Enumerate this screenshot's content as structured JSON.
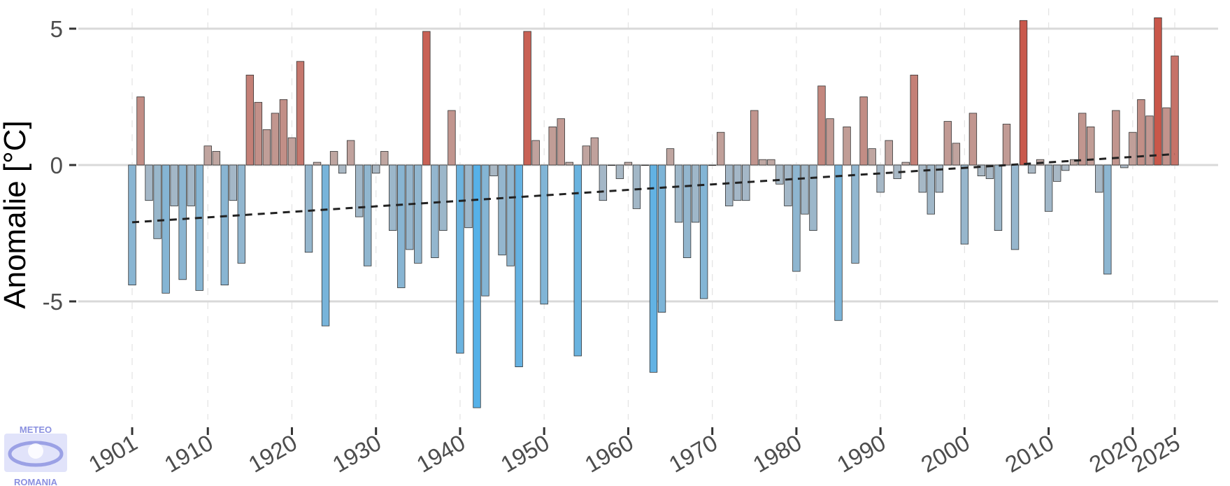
{
  "chart_data": {
    "type": "bar",
    "title": "",
    "xlabel": "",
    "ylabel": "Anomalie [°C]",
    "ylim": [
      -9.5,
      5.6
    ],
    "xlim": [
      1896,
      2026
    ],
    "grid": "horizontal major lines at y ticks; dashed vertical lines at x ticks",
    "legend": "none",
    "yticks": [
      5,
      0,
      -5
    ],
    "ytick_labels": [
      "5",
      "0",
      "-5"
    ],
    "xticks": [
      1901,
      1910,
      1920,
      1930,
      1940,
      1950,
      1960,
      1970,
      1980,
      1990,
      2000,
      2010,
      2020,
      2025
    ],
    "xtick_labels": [
      "1901",
      "1910",
      "1920",
      "1930",
      "1940",
      "1950",
      "1960",
      "1970",
      "1980",
      "1990",
      "2000",
      "2010",
      "2020",
      "2025"
    ],
    "years": [
      1901,
      1902,
      1903,
      1904,
      1905,
      1906,
      1907,
      1908,
      1909,
      1910,
      1911,
      1912,
      1913,
      1914,
      1915,
      1916,
      1917,
      1918,
      1919,
      1920,
      1921,
      1922,
      1923,
      1924,
      1925,
      1926,
      1927,
      1928,
      1929,
      1930,
      1931,
      1932,
      1933,
      1934,
      1935,
      1936,
      1937,
      1938,
      1939,
      1940,
      1941,
      1942,
      1943,
      1944,
      1945,
      1946,
      1947,
      1948,
      1949,
      1950,
      1951,
      1952,
      1953,
      1954,
      1955,
      1956,
      1957,
      1958,
      1959,
      1960,
      1961,
      1962,
      1963,
      1964,
      1965,
      1966,
      1967,
      1968,
      1969,
      1970,
      1971,
      1972,
      1973,
      1974,
      1975,
      1976,
      1977,
      1978,
      1979,
      1980,
      1981,
      1982,
      1983,
      1984,
      1985,
      1986,
      1987,
      1988,
      1989,
      1990,
      1991,
      1992,
      1993,
      1994,
      1995,
      1996,
      1997,
      1998,
      1999,
      2000,
      2001,
      2002,
      2003,
      2004,
      2005,
      2006,
      2007,
      2008,
      2009,
      2010,
      2011,
      2012,
      2013,
      2014,
      2015,
      2016,
      2017,
      2018,
      2019,
      2020,
      2021,
      2022,
      2023,
      2024,
      2025
    ],
    "values": [
      -4.4,
      2.5,
      -1.3,
      -2.7,
      -4.7,
      -1.5,
      -4.2,
      -1.5,
      -4.6,
      0.7,
      0.5,
      -4.4,
      -1.3,
      -3.6,
      3.3,
      2.3,
      1.3,
      1.9,
      2.4,
      1.0,
      3.8,
      -3.2,
      0.1,
      -5.9,
      0.5,
      -0.3,
      0.9,
      -1.9,
      -3.7,
      -0.3,
      0.5,
      -2.4,
      -4.5,
      -3.1,
      -3.6,
      4.9,
      -3.4,
      -2.4,
      2.0,
      -6.9,
      -2.3,
      -8.9,
      -4.8,
      -0.4,
      -3.3,
      -3.7,
      -7.4,
      4.9,
      0.9,
      -5.1,
      1.4,
      1.7,
      0.1,
      -7.0,
      0.7,
      1.0,
      -1.3,
      0.0,
      -0.5,
      0.1,
      -1.6,
      0.0,
      -7.6,
      -5.4,
      0.6,
      -2.1,
      -3.4,
      -2.1,
      -4.9,
      0.0,
      1.2,
      -1.5,
      -1.3,
      -1.3,
      2.0,
      0.2,
      0.2,
      -0.7,
      -1.5,
      -3.9,
      -1.8,
      -2.4,
      2.9,
      1.7,
      -5.7,
      1.4,
      -3.6,
      2.5,
      0.6,
      -1.0,
      0.9,
      -0.5,
      0.1,
      3.3,
      -1.0,
      -1.8,
      -1.0,
      1.6,
      0.8,
      -2.9,
      1.9,
      -0.4,
      -0.5,
      -2.4,
      1.5,
      -3.1,
      5.3,
      -0.3,
      0.2,
      -1.7,
      -0.6,
      -0.2,
      0.2,
      1.9,
      1.4,
      -1.0,
      -4.0,
      2.0,
      -0.1,
      1.2,
      2.4,
      1.8,
      5.4,
      2.1,
      4.0
    ],
    "trend": {
      "style": "dashed",
      "x": [
        1901,
        2025
      ],
      "y": [
        -2.1,
        0.4
      ]
    },
    "colors": {
      "cold_strong": "#56B1E8",
      "cold_neutral": "#AAB8C4",
      "warm_neutral": "#BFA9A4",
      "warm_strong": "#C9574A",
      "bar_border": "#333333",
      "trend": "#222222",
      "grid_major": "#d9d9d9",
      "grid_minor": "#e3e3e3"
    }
  },
  "logo": {
    "top_text": "METEO",
    "bottom_text": "ROMANIA",
    "color": "#8a90e0"
  }
}
